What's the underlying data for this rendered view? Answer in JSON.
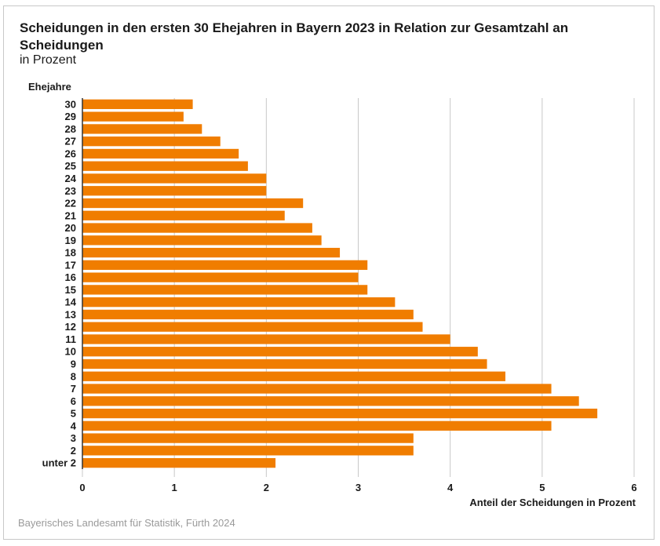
{
  "chart_data": {
    "type": "bar",
    "orientation": "horizontal",
    "title": "Scheidungen in den ersten 30 Ehejahren in Bayern 2023 in Relation zur Gesamtzahl an Scheidungen",
    "subtitle": "in Prozent",
    "ylabel": "Ehejahre",
    "xlabel": "Anteil der Scheidungen in Prozent",
    "source": "Bayerisches Landesamt für Statistik, Fürth 2024",
    "xlim": [
      0,
      6
    ],
    "xticks": [
      "0",
      "1",
      "2",
      "3",
      "4",
      "5",
      "6"
    ],
    "grid": true,
    "bar_color": "#f07d00",
    "categories": [
      "30",
      "29",
      "28",
      "27",
      "26",
      "25",
      "24",
      "23",
      "22",
      "21",
      "20",
      "19",
      "18",
      "17",
      "16",
      "15",
      "14",
      "13",
      "12",
      "11",
      "10",
      "9",
      "8",
      "7",
      "6",
      "5",
      "4",
      "3",
      "2",
      "unter 2"
    ],
    "values": [
      1.2,
      1.1,
      1.3,
      1.5,
      1.7,
      1.8,
      2.0,
      2.0,
      2.4,
      2.2,
      2.5,
      2.6,
      2.8,
      3.1,
      3.0,
      3.1,
      3.4,
      3.6,
      3.7,
      4.0,
      4.3,
      4.4,
      4.6,
      5.1,
      5.4,
      5.6,
      5.1,
      3.6,
      3.6,
      2.1
    ]
  }
}
